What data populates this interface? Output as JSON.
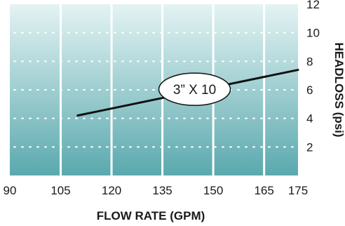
{
  "chart_data": {
    "type": "line",
    "xlabel": "FLOW RATE (GPM)",
    "ylabel": "HEADLOSS (psi)",
    "x_ticks": [
      90,
      105,
      120,
      135,
      150,
      165,
      175
    ],
    "y_ticks": [
      2,
      4,
      6,
      8,
      10,
      12
    ],
    "xlim": [
      90,
      175
    ],
    "ylim": [
      0,
      12
    ],
    "grid": "vertical solid white lines at x ticks; horizontal dotted white lines at y ticks",
    "background": "vertical gradient, light aqua at top to teal at bottom",
    "series": [
      {
        "name": "3” X 10",
        "x": [
          110,
          175
        ],
        "y": [
          4.2,
          7.4
        ]
      }
    ]
  },
  "colors": {
    "gradient_top": "#e4f3f3",
    "gradient_bottom": "#5aa9ae",
    "grid": "#ffffff",
    "line": "#111111"
  }
}
